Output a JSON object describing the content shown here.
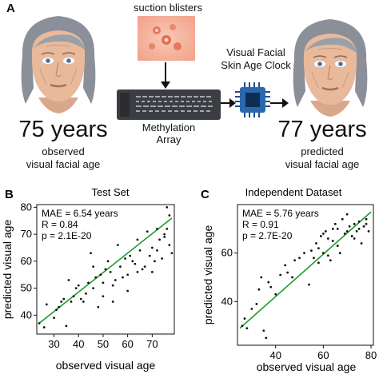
{
  "panel_a": {
    "letter": "A",
    "suction_label": "suction blisters",
    "clock_label_line1": "Visual Facial",
    "clock_label_line2": "Skin Age Clock",
    "array_label_line1": "Methylation",
    "array_label_line2": "Array",
    "left_age": "75 years",
    "left_caption_line1": "observed",
    "left_caption_line2": "visual facial age",
    "right_age": "77 years",
    "right_caption_line1": "predicted",
    "right_caption_line2": "visual facial age"
  },
  "chart_data": [
    {
      "type": "scatter",
      "letter": "B",
      "title": "Test Set",
      "xlabel": "observed visual age",
      "ylabel": "predicted visual age",
      "xlim": [
        23,
        79
      ],
      "ylim": [
        33,
        81
      ],
      "xticks": [
        30,
        40,
        50,
        60,
        70
      ],
      "yticks": [
        40,
        50,
        60,
        70,
        80
      ],
      "stats": [
        "MAE = 6.54 years",
        "R = 0.84",
        "p = 2.1E-20"
      ],
      "fit_line": {
        "x": [
          24,
          78
        ],
        "y": [
          37,
          76
        ],
        "color": "#1a9e2a"
      },
      "points": [
        [
          24,
          37
        ],
        [
          26,
          35.5
        ],
        [
          27,
          44
        ],
        [
          30,
          39
        ],
        [
          31,
          42
        ],
        [
          32,
          43
        ],
        [
          33,
          45
        ],
        [
          34,
          46
        ],
        [
          35,
          36
        ],
        [
          36,
          53
        ],
        [
          37,
          45
        ],
        [
          38,
          47
        ],
        [
          39,
          50
        ],
        [
          40,
          51
        ],
        [
          41,
          46
        ],
        [
          42,
          45
        ],
        [
          43,
          48
        ],
        [
          44,
          52
        ],
        [
          45,
          63
        ],
        [
          46,
          50
        ],
        [
          47,
          54
        ],
        [
          48,
          43
        ],
        [
          49,
          55
        ],
        [
          50,
          52
        ],
        [
          51,
          57
        ],
        [
          52,
          60
        ],
        [
          53,
          56
        ],
        [
          54,
          51
        ],
        [
          55,
          53
        ],
        [
          56,
          66
        ],
        [
          57,
          58
        ],
        [
          58,
          54
        ],
        [
          59,
          61
        ],
        [
          60,
          55
        ],
        [
          61,
          62
        ],
        [
          62,
          60
        ],
        [
          63,
          59
        ],
        [
          64,
          68
        ],
        [
          65,
          64
        ],
        [
          66,
          57
        ],
        [
          67,
          58
        ],
        [
          68,
          71
        ],
        [
          69,
          62
        ],
        [
          70,
          65
        ],
        [
          71,
          60
        ],
        [
          72,
          72
        ],
        [
          73,
          68
        ],
        [
          74,
          61
        ],
        [
          75,
          70
        ],
        [
          76,
          80
        ],
        [
          76,
          72
        ],
        [
          77,
          66
        ],
        [
          77,
          77
        ],
        [
          78,
          63
        ],
        [
          54,
          45
        ],
        [
          60,
          49
        ],
        [
          64,
          56
        ],
        [
          72,
          64
        ],
        [
          75,
          69
        ],
        [
          70,
          56
        ],
        [
          50,
          47
        ],
        [
          46,
          58
        ]
      ]
    },
    {
      "type": "scatter",
      "letter": "C",
      "title": "Independent Dataset",
      "xlabel": "observed visual age",
      "ylabel": "predicted visual age",
      "xlim": [
        24,
        81
      ],
      "ylim": [
        22,
        80
      ],
      "xticks": [
        40,
        60,
        80
      ],
      "yticks": [
        40,
        60
      ],
      "stats": [
        "MAE = 5.76 years",
        "R = 0.91",
        "p = 2.7E-20"
      ],
      "fit_line": {
        "x": [
          25,
          80
        ],
        "y": [
          29,
          77
        ],
        "color": "#1a9e2a"
      },
      "points": [
        [
          26,
          30
        ],
        [
          27,
          33
        ],
        [
          28,
          29
        ],
        [
          30,
          37
        ],
        [
          32,
          39
        ],
        [
          33,
          45
        ],
        [
          34,
          50
        ],
        [
          35,
          28
        ],
        [
          36,
          25
        ],
        [
          37,
          48
        ],
        [
          38,
          46
        ],
        [
          40,
          43
        ],
        [
          42,
          51
        ],
        [
          44,
          55
        ],
        [
          45,
          52
        ],
        [
          47,
          50
        ],
        [
          48,
          57
        ],
        [
          50,
          58
        ],
        [
          52,
          60
        ],
        [
          54,
          47
        ],
        [
          55,
          61
        ],
        [
          56,
          58
        ],
        [
          57,
          64
        ],
        [
          58,
          62
        ],
        [
          59,
          67
        ],
        [
          60,
          60
        ],
        [
          61,
          69
        ],
        [
          62,
          66
        ],
        [
          63,
          57
        ],
        [
          64,
          65
        ],
        [
          65,
          72
        ],
        [
          66,
          70
        ],
        [
          67,
          60
        ],
        [
          68,
          74
        ],
        [
          69,
          68
        ],
        [
          70,
          76
        ],
        [
          71,
          71
        ],
        [
          72,
          67
        ],
        [
          73,
          72
        ],
        [
          74,
          69
        ],
        [
          75,
          73
        ],
        [
          76,
          64
        ],
        [
          77,
          71
        ],
        [
          78,
          74
        ],
        [
          79,
          69
        ],
        [
          62,
          59
        ],
        [
          66,
          63
        ],
        [
          70,
          69
        ],
        [
          73,
          66
        ],
        [
          60,
          68
        ],
        [
          64,
          70
        ],
        [
          75,
          70
        ],
        [
          78,
          72
        ],
        [
          58,
          56
        ]
      ]
    }
  ]
}
